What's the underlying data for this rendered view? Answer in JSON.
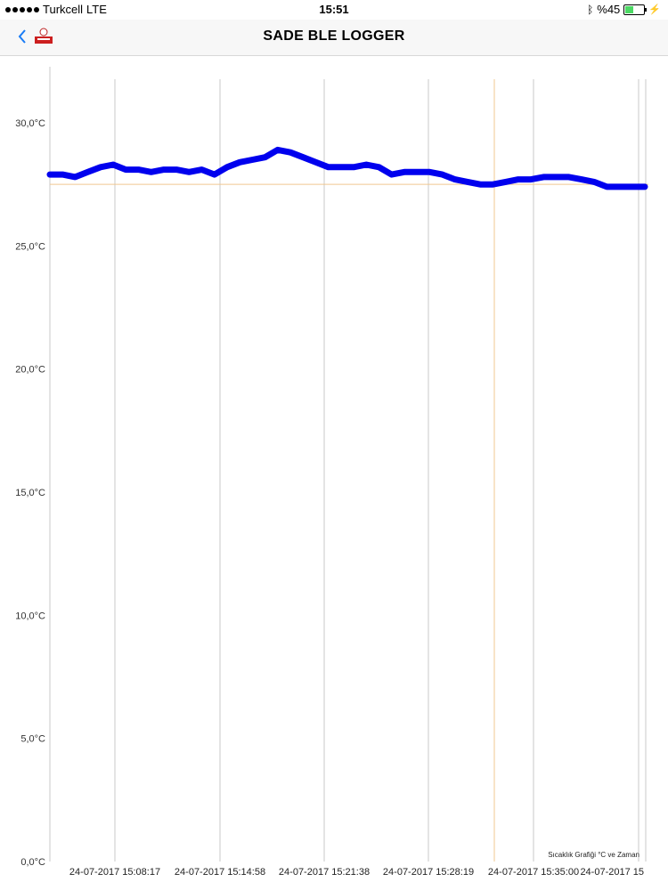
{
  "status_bar": {
    "carrier": "Turkcell",
    "network": "LTE",
    "time": "15:51",
    "battery_label": "%45",
    "battery_level": 0.45
  },
  "nav": {
    "title": "SADE BLE LOGGER",
    "back_icon": "chevron-left-icon",
    "logo_icon": "app-logo-icon"
  },
  "colors": {
    "line": "#0000ee",
    "threshold": "#f0c890",
    "grid": "#c8c8c8",
    "accent": "#1a7cf5"
  },
  "chart_data": {
    "type": "line",
    "title": "",
    "caption": "Sıcaklık Grafiği °C ve Zaman",
    "ylim": [
      0,
      30
    ],
    "y_ticks": [
      "0,0°C",
      "5,0°C",
      "10,0°C",
      "15,0°C",
      "20,0°C",
      "25,0°C",
      "30,0°C"
    ],
    "x_tick_labels": [
      "24-07-2017 15:08:17",
      "24-07-2017 15:14:58",
      "24-07-2017 15:21:38",
      "24-07-2017 15:28:19",
      "24-07-2017 15:35:00",
      "24-07-2017 15"
    ],
    "threshold": 27.5,
    "series": [
      {
        "values": [
          27.9,
          27.9,
          27.8,
          28.0,
          28.2,
          28.3,
          28.1,
          28.1,
          28.0,
          28.1,
          28.1,
          28.0,
          28.1,
          27.9,
          28.2,
          28.4,
          28.5,
          28.6,
          28.9,
          28.8,
          28.6,
          28.4,
          28.2,
          28.2,
          28.2,
          28.3,
          28.2,
          27.9,
          28.0,
          28.0,
          28.0,
          27.9,
          27.7,
          27.6,
          27.5,
          27.5,
          27.6,
          27.7,
          27.7,
          27.8,
          27.8,
          27.8,
          27.7,
          27.6,
          27.4,
          27.4,
          27.4,
          27.4
        ]
      }
    ]
  }
}
